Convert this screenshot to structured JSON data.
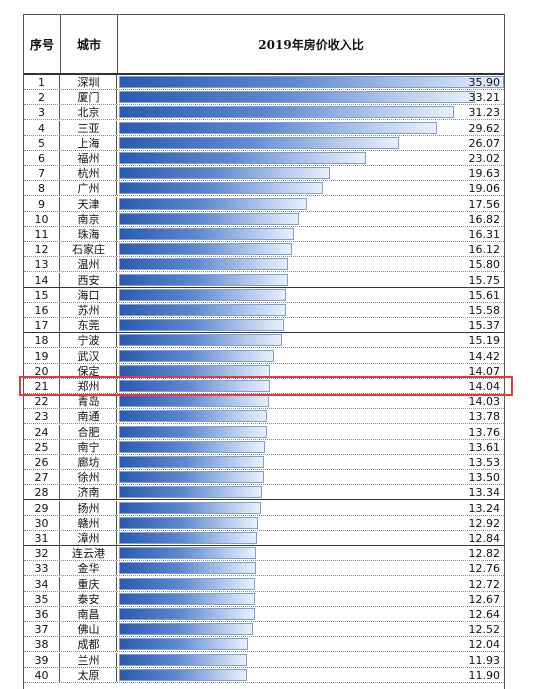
{
  "header": {
    "rank": "序号",
    "city": "城市",
    "ratio": "2019年房价收入比"
  },
  "highlight_rank": 21,
  "chart_data": {
    "type": "bar",
    "title": "2019年房价收入比",
    "categories": [
      "深圳",
      "厦门",
      "北京",
      "三亚",
      "上海",
      "福州",
      "杭州",
      "广州",
      "天津",
      "南京",
      "珠海",
      "石家庄",
      "温州",
      "西安",
      "海口",
      "苏州",
      "东莞",
      "宁波",
      "武汉",
      "保定",
      "郑州",
      "青岛",
      "南通",
      "合肥",
      "南宁",
      "廊坊",
      "徐州",
      "济南",
      "扬州",
      "赣州",
      "漳州",
      "连云港",
      "金华",
      "重庆",
      "泰安",
      "南昌",
      "佛山",
      "成都",
      "兰州",
      "太原"
    ],
    "ranks": [
      "1",
      "2",
      "3",
      "4",
      "5",
      "6",
      "7",
      "8",
      "9",
      "10",
      "11",
      "12",
      "13",
      "14",
      "15",
      "16",
      "17",
      "18",
      "19",
      "20",
      "21",
      "22",
      "23",
      "24",
      "25",
      "26",
      "27",
      "28",
      "29",
      "30",
      "31",
      "32",
      "33",
      "34",
      "35",
      "36",
      "37",
      "38",
      "39",
      "40"
    ],
    "values": [
      "35.90",
      "33.21",
      "31.23",
      "29.62",
      "26.07",
      "23.02",
      "19.63",
      "19.06",
      "17.56",
      "16.82",
      "16.31",
      "16.12",
      "15.80",
      "15.75",
      "15.61",
      "15.58",
      "15.37",
      "15.19",
      "14.42",
      "14.07",
      "14.04",
      "14.03",
      "13.78",
      "13.76",
      "13.61",
      "13.53",
      "13.50",
      "13.34",
      "13.24",
      "12.92",
      "12.84",
      "12.82",
      "12.76",
      "12.72",
      "12.67",
      "12.64",
      "12.52",
      "12.04",
      "11.93",
      "11.90"
    ],
    "xlim": [
      0,
      35.9
    ]
  }
}
